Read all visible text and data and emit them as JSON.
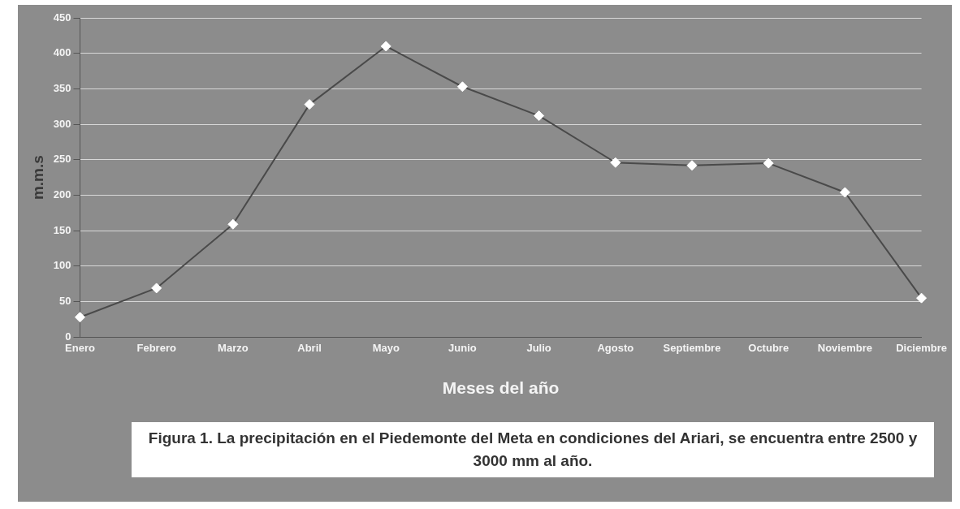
{
  "chart_data": {
    "type": "line",
    "xlabel": "Meses del año",
    "ylabel": "m.m.s",
    "annotations": [
      "Figura 1.  La precipitación en el Piedemonte del Meta en condiciones del Ariari, se encuentra entre 2500 y 3000 mm al año."
    ],
    "categories": [
      "Enero",
      "Febrero",
      "Marzo",
      "Abril",
      "Mayo",
      "Junio",
      "Julio",
      "Agosto",
      "Septiembre",
      "Octubre",
      "Noviembre",
      "Diciembre"
    ],
    "series": [
      {
        "color": "#4a4a4a",
        "values": [
          28,
          69,
          159,
          328,
          410,
          353,
          312,
          246,
          242,
          245,
          204,
          55
        ]
      }
    ],
    "ylim": [
      0,
      450
    ],
    "yticks": [
      0,
      50,
      100,
      150,
      200,
      250,
      300,
      350,
      400,
      450
    ],
    "grid": "y",
    "legend": false,
    "marker": "diamond",
    "line_style": "solid"
  }
}
